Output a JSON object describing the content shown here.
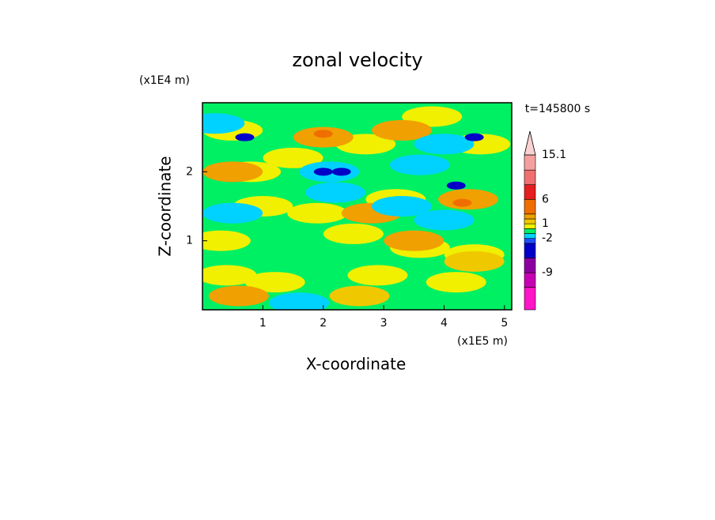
{
  "chart_data": {
    "type": "contour",
    "title": "zonal velocity",
    "xlabel": "X-coordinate",
    "ylabel": "Z-coordinate",
    "xunit": "(x1E5 m)",
    "yunit": "(x1E4 m)",
    "annotation": "t=145800 s",
    "xlim": [
      0,
      5.12
    ],
    "ylim": [
      0,
      3
    ],
    "xticks": [
      1,
      2,
      3,
      4,
      5
    ],
    "yticks": [
      1,
      2
    ],
    "field": [
      {
        "x": 0.5,
        "z": 2.6,
        "value": 0.5
      },
      {
        "x": 0.8,
        "z": 2.0,
        "value": 0.5
      },
      {
        "x": 0.4,
        "z": 0.5,
        "value": 0.5
      },
      {
        "x": 1.2,
        "z": 0.4,
        "value": 0.5
      },
      {
        "x": 2.5,
        "z": 1.1,
        "value": 0.5
      },
      {
        "x": 3.2,
        "z": 1.6,
        "value": 0.5
      },
      {
        "x": 3.6,
        "z": 0.9,
        "value": 0.5
      },
      {
        "x": 4.5,
        "z": 0.8,
        "value": 0.5
      },
      {
        "x": 1.9,
        "z": 1.4,
        "value": 0.5
      },
      {
        "x": 4.6,
        "z": 2.4,
        "value": 0.5
      },
      {
        "x": 2.7,
        "z": 2.4,
        "value": 0.5
      },
      {
        "x": 3.8,
        "z": 2.8,
        "value": 0.5
      },
      {
        "x": 0.3,
        "z": 1.0,
        "value": 0.5
      },
      {
        "x": 2.9,
        "z": 0.5,
        "value": 0.5
      },
      {
        "x": 1.5,
        "z": 2.2,
        "value": 0.5
      },
      {
        "x": 4.2,
        "z": 0.4,
        "value": 0.5
      },
      {
        "x": 1.0,
        "z": 1.5,
        "value": 0.5
      },
      {
        "x": 2.0,
        "z": 2.5,
        "value": 2.5
      },
      {
        "x": 0.6,
        "z": 0.2,
        "value": 2.5
      },
      {
        "x": 2.8,
        "z": 1.4,
        "value": 2.5
      },
      {
        "x": 4.4,
        "z": 1.6,
        "value": 2.5
      },
      {
        "x": 3.5,
        "z": 1.0,
        "value": 2.5
      },
      {
        "x": 3.3,
        "z": 2.6,
        "value": 2.5
      },
      {
        "x": 0.5,
        "z": 2.0,
        "value": 2.5
      },
      {
        "x": 4.5,
        "z": 0.7,
        "value": 1.5
      },
      {
        "x": 2.6,
        "z": 0.2,
        "value": 1.5
      },
      {
        "x": 2.0,
        "z": 2.55,
        "value": 4
      },
      {
        "x": 4.3,
        "z": 1.55,
        "value": 4
      },
      {
        "x": 0.2,
        "z": 2.7,
        "value": -1.5
      },
      {
        "x": 2.2,
        "z": 1.7,
        "value": -1.5
      },
      {
        "x": 3.6,
        "z": 2.1,
        "value": -1.5
      },
      {
        "x": 4.0,
        "z": 2.4,
        "value": -1.5
      },
      {
        "x": 0.5,
        "z": 1.4,
        "value": -1.5
      },
      {
        "x": 1.6,
        "z": 0.1,
        "value": -1.5
      },
      {
        "x": 4.0,
        "z": 1.3,
        "value": -1.5
      },
      {
        "x": 3.3,
        "z": 1.5,
        "value": -1.5
      },
      {
        "x": 2.1,
        "z": 2.0,
        "value": -1.5
      },
      {
        "x": 4.2,
        "z": 1.8,
        "value": -4
      },
      {
        "x": 2.0,
        "z": 2.0,
        "value": -4
      },
      {
        "x": 0.7,
        "z": 2.5,
        "value": -4
      },
      {
        "x": 2.3,
        "z": 2.0,
        "value": -4
      },
      {
        "x": 4.5,
        "z": 2.5,
        "value": -4
      }
    ],
    "colorbar": {
      "clim": [
        -16.6,
        15.1
      ],
      "levels": [
        -12,
        -9,
        -6,
        -3,
        -2,
        -1,
        0,
        1,
        2,
        3,
        6,
        9,
        12
      ],
      "colors": [
        "#ff14c8",
        "#c800b4",
        "#8c00a0",
        "#0000c8",
        "#1e50ff",
        "#00d2ff",
        "#00f064",
        "#f0f000",
        "#f0c800",
        "#f0a000",
        "#f06e00",
        "#e61e1e",
        "#f07070",
        "#f5a0a0",
        "#fad2d2"
      ],
      "ticks": [
        15.1,
        6,
        1,
        -2,
        -9
      ]
    }
  }
}
